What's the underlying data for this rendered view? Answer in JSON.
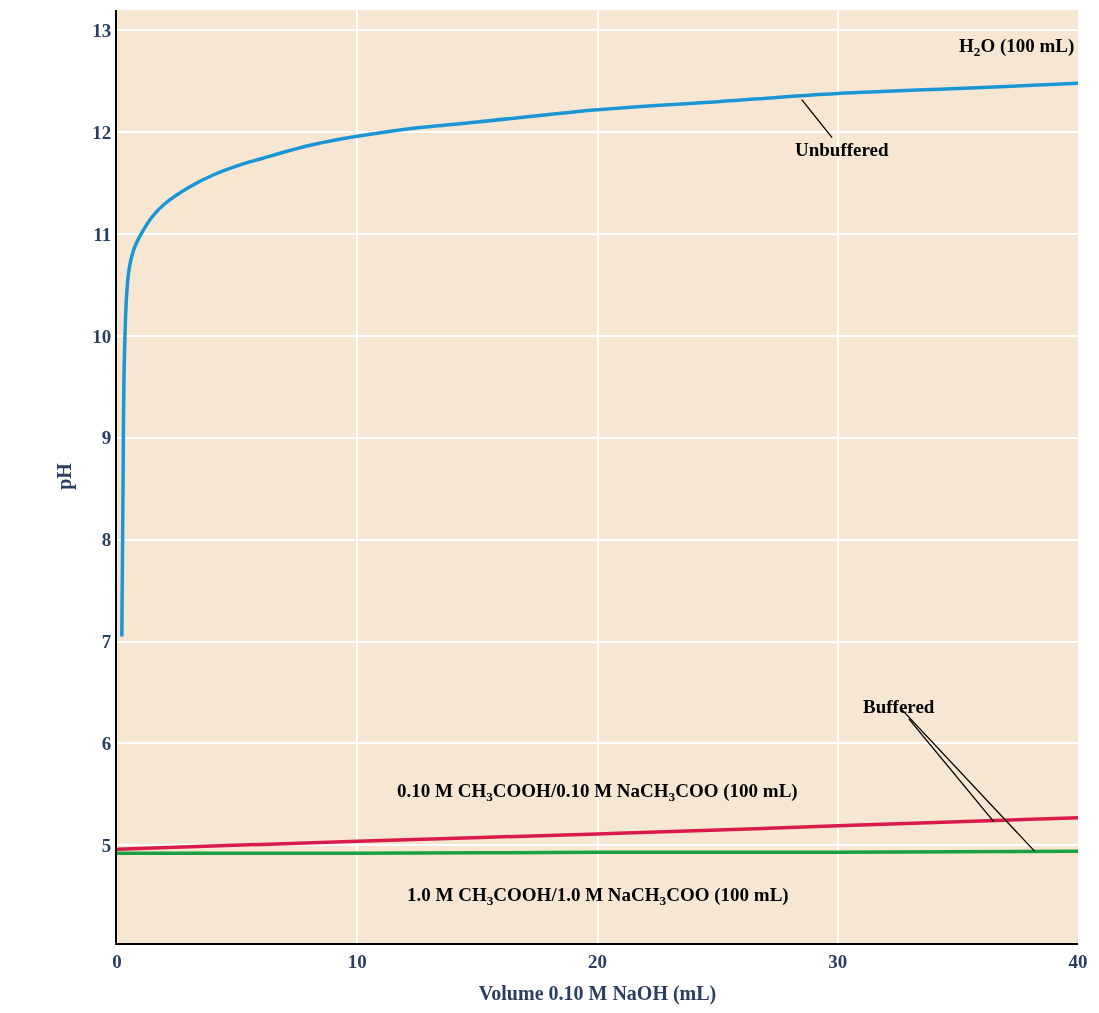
{
  "chart_data": {
    "type": "line",
    "xlabel": "Volume 0.10 M NaOH (mL)",
    "ylabel": "pH",
    "xlim": [
      0,
      40
    ],
    "xticks": [
      0,
      10,
      20,
      30,
      40
    ],
    "ylim": [
      4.04,
      13.2
    ],
    "yticks": [
      5,
      6,
      7,
      8,
      9,
      10,
      11,
      12,
      13
    ],
    "grid": true,
    "legend": false,
    "marker": "none",
    "line_style": "solid",
    "series": [
      {
        "name": "H$_{2}$O (100 mL)",
        "color": "#1a96d4",
        "x": [
          0.2,
          0.25,
          0.3,
          0.4,
          0.5,
          0.7,
          1,
          1.5,
          2,
          3,
          4,
          5,
          6,
          8,
          10,
          12,
          15,
          20,
          25,
          30,
          35,
          40
        ],
        "values": [
          7.05,
          8.5,
          9.7,
          10.4,
          10.65,
          10.85,
          11.0,
          11.18,
          11.3,
          11.46,
          11.58,
          11.67,
          11.74,
          11.87,
          11.96,
          12.03,
          12.1,
          12.22,
          12.3,
          12.38,
          12.43,
          12.48
        ]
      },
      {
        "name": "0.10 M CH$_{3}$COOH/0.10 M NaCH$_{3}$COO (100 mL)",
        "color": "#d81b4a",
        "x": [
          0,
          10,
          20,
          30,
          40
        ],
        "values": [
          4.96,
          5.04,
          5.11,
          5.19,
          5.27
        ]
      },
      {
        "name": "1.0 M CH$_{3}$COOH/1.0 M NaCH$_{3}$COO (100 mL)",
        "color": "#1aa043",
        "x": [
          0,
          10,
          20,
          30,
          40
        ],
        "values": [
          4.92,
          4.92,
          4.93,
          4.93,
          4.94
        ]
      }
    ],
    "annotations": [
      {
        "text": "Unbuffered",
        "x": 28.5,
        "y": 12.32
      },
      {
        "text": "Buffered",
        "x": 36.5,
        "y": 5.23
      }
    ]
  }
}
